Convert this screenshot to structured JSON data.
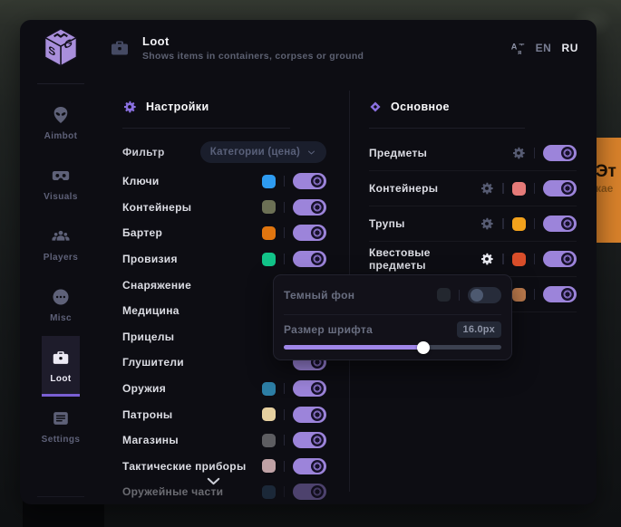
{
  "header": {
    "title": "Loot",
    "subtitle": "Shows items in containers, corpses or ground",
    "lang_en": "EN",
    "lang_ru": "RU",
    "active_lang": "RU"
  },
  "sidebar": {
    "items": [
      {
        "label": "Aimbot",
        "icon": "alien-icon",
        "active": false
      },
      {
        "label": "Visuals",
        "icon": "vr-goggles-icon",
        "active": false
      },
      {
        "label": "Players",
        "icon": "players-icon",
        "active": false
      },
      {
        "label": "Misc",
        "icon": "ellipsis-circle-icon",
        "active": false
      },
      {
        "label": "Loot",
        "icon": "briefcase-icon",
        "active": true
      },
      {
        "label": "Settings",
        "icon": "list-icon",
        "active": false
      }
    ]
  },
  "settings_section": {
    "title": "Настройки",
    "filter_label": "Фильтр",
    "filter_value": "Категории (цена)",
    "rows": [
      {
        "label": "Ключи",
        "color": "#2e9bf0",
        "enabled": true
      },
      {
        "label": "Контейнеры",
        "color": "#6c7055",
        "enabled": true
      },
      {
        "label": "Бартер",
        "color": "#e0750f",
        "enabled": true
      },
      {
        "label": "Провизия",
        "color": "#12c489",
        "enabled": true
      },
      {
        "label": "Снаряжение",
        "color": "",
        "enabled": true,
        "covered_by_popup": true
      },
      {
        "label": "Медицина",
        "color": "",
        "enabled": true,
        "covered_by_popup": true
      },
      {
        "label": "Прицелы",
        "color": "",
        "enabled": true,
        "covered_by_popup": true
      },
      {
        "label": "Глушители",
        "color": "",
        "enabled": true,
        "covered_by_popup": true
      },
      {
        "label": "Оружия",
        "color": "#2d7fa6",
        "enabled": true
      },
      {
        "label": "Патроны",
        "color": "#e6d0a0",
        "enabled": true
      },
      {
        "label": "Магазины",
        "color": "#5d5d61",
        "enabled": true
      },
      {
        "label": "Тактические приборы",
        "color": "#c0a2a6",
        "enabled": true
      },
      {
        "label": "Оружейные части",
        "color": "#2c4a66",
        "enabled": true,
        "faded": true
      }
    ]
  },
  "main_section": {
    "title": "Основное",
    "rows": [
      {
        "label": "Предметы",
        "gear": true,
        "gear_bright": false,
        "color": "",
        "enabled": true
      },
      {
        "label": "Контейнеры",
        "gear": true,
        "gear_bright": false,
        "color": "#e57a78",
        "enabled": true
      },
      {
        "label": "Трупы",
        "gear": true,
        "gear_bright": false,
        "color": "#f2a11c",
        "enabled": true
      },
      {
        "label": "Квестовые предметы",
        "gear": true,
        "gear_bright": true,
        "color": "#d94e2a",
        "enabled": true
      },
      {
        "label": "",
        "gear": false,
        "gear_bright": false,
        "color": "#bd7b4d",
        "enabled": true,
        "label_hidden_by_popup": true
      }
    ]
  },
  "popup": {
    "dark_bg_label": "Темный фон",
    "dark_bg_enabled": false,
    "dark_bg_swatch": "#23272f",
    "font_size_label": "Размер шрифта",
    "font_size_value": "16.0px",
    "slider_percent": 64
  },
  "background": {
    "tooltip_line1": "Эт",
    "tooltip_line2": "кае"
  },
  "colors": {
    "accent": "#8a70e0",
    "toggle_on": "#9c84da",
    "window_bg": "#0d0d13",
    "active_tab_underline": "#7a5fd3"
  }
}
